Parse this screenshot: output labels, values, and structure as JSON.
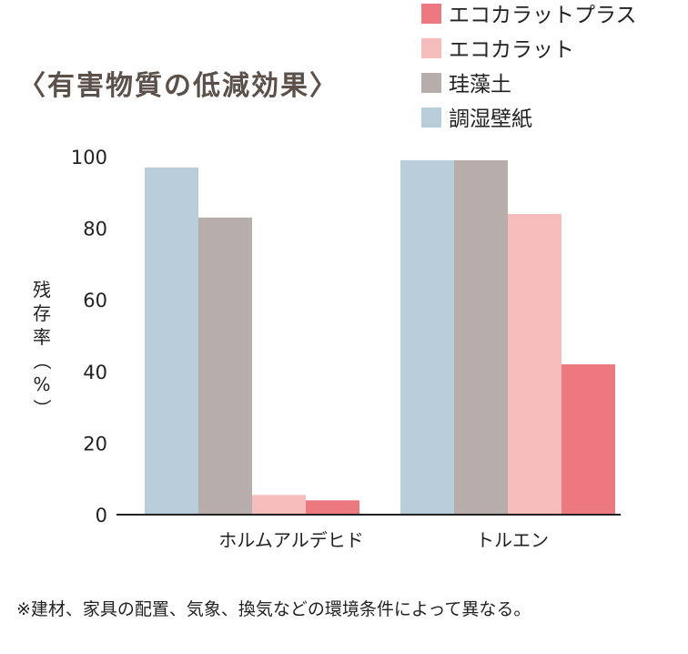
{
  "chart_data": {
    "type": "bar",
    "title": "〈有害物質の低減効果〉",
    "ylabel": "残存率（%）",
    "ylim": [
      0,
      100
    ],
    "yticks": [
      0,
      20,
      40,
      60,
      80,
      100
    ],
    "categories": [
      "ホルムアルデヒド",
      "トルエン"
    ],
    "series": [
      {
        "name": "調湿壁紙",
        "color": "#b8cdd9",
        "values": [
          97,
          99
        ]
      },
      {
        "name": "珪藻土",
        "color": "#b7aeab",
        "values": [
          83,
          99
        ]
      },
      {
        "name": "エコカラット",
        "color": "#f6bcbc",
        "values": [
          5.5,
          84
        ]
      },
      {
        "name": "エコカラットプラス",
        "color": "#ec7880",
        "values": [
          4,
          42
        ]
      }
    ],
    "legend_order": [
      3,
      2,
      1,
      0
    ],
    "legend_placement": "top-right",
    "grid": false
  },
  "footnote": "※建材、家具の配置、気象、換気などの環境条件によって異なる。"
}
